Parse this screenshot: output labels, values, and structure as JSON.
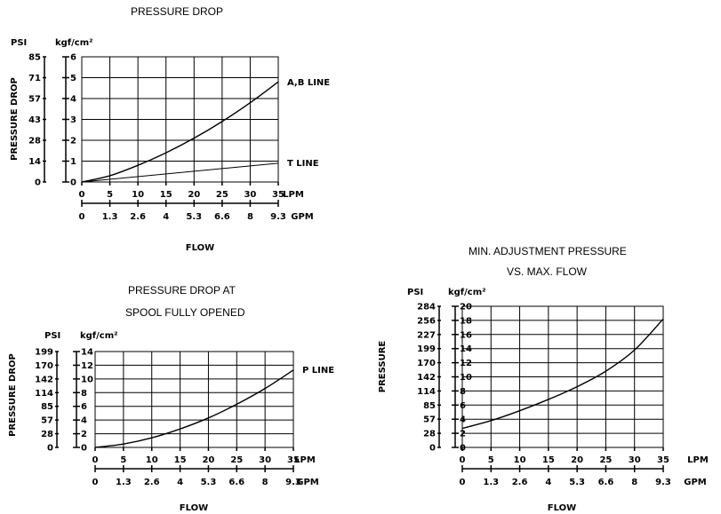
{
  "chart_data": [
    {
      "type": "line",
      "title": "PRESSURE DROP",
      "ylabel": "PRESSURE DROP",
      "xlabel": "FLOW",
      "y_units": [
        "PSI",
        "kgf/cm²"
      ],
      "psi_ticks": [
        "85",
        "71",
        "57",
        "43",
        "28",
        "14",
        "0"
      ],
      "kgf_ticks": [
        "6",
        "5",
        "4",
        "3",
        "2",
        "1",
        "0"
      ],
      "lpm_ticks": [
        "0",
        "5",
        "10",
        "15",
        "20",
        "25",
        "30",
        "35"
      ],
      "lpm_label": "LPM",
      "gpm_ticks": [
        "0",
        "1.3",
        "2.6",
        "4",
        "5.3",
        "6.6",
        "8",
        "9.3"
      ],
      "gpm_label": "GPM",
      "xlim": [
        0,
        35
      ],
      "ylim": [
        0,
        6
      ],
      "grid": true,
      "series": [
        {
          "name": "A,B LINE",
          "x": [
            0,
            5,
            10,
            15,
            20,
            25,
            30,
            35
          ],
          "y": [
            0,
            0.3,
            0.8,
            1.4,
            2.1,
            2.9,
            3.8,
            4.8
          ],
          "stroke_width": 1.4
        },
        {
          "name": "T LINE",
          "x": [
            0,
            35
          ],
          "y": [
            0,
            0.9
          ],
          "stroke_width": 1
        }
      ]
    },
    {
      "type": "line",
      "title": [
        "PRESSURE DROP AT",
        "SPOOL FULLY OPENED"
      ],
      "ylabel": "PRESSURE DROP",
      "xlabel": "FLOW",
      "y_units": [
        "PSI",
        "kgf/cm²"
      ],
      "psi_ticks": [
        "199",
        "170",
        "142",
        "114",
        "85",
        "57",
        "28",
        "0"
      ],
      "kgf_ticks": [
        "14",
        "12",
        "10",
        "8",
        "6",
        "4",
        "2",
        "0"
      ],
      "lpm_ticks": [
        "0",
        "5",
        "10",
        "15",
        "20",
        "25",
        "30",
        "35"
      ],
      "lpm_label": "LPM",
      "gpm_ticks": [
        "0",
        "1.3",
        "2.6",
        "4",
        "5.3",
        "6.6",
        "8",
        "9.3"
      ],
      "gpm_label": "GPM",
      "xlim": [
        0,
        35
      ],
      "ylim": [
        0,
        14
      ],
      "grid": true,
      "series": [
        {
          "name": "P LINE",
          "x": [
            0,
            5,
            10,
            15,
            20,
            25,
            30,
            35
          ],
          "y": [
            0,
            0.5,
            1.4,
            2.7,
            4.3,
            6.3,
            8.6,
            11.3
          ],
          "stroke_width": 1.4
        }
      ]
    },
    {
      "type": "line",
      "title": [
        "MIN. ADJUSTMENT PRESSURE",
        "VS. MAX. FLOW"
      ],
      "ylabel": "PRESSURE",
      "xlabel": "FLOW",
      "y_units": [
        "PSI",
        "kgf/cm²"
      ],
      "psi_ticks": [
        "284",
        "256",
        "227",
        "199",
        "170",
        "142",
        "114",
        "85",
        "57",
        "28",
        "0"
      ],
      "kgf_ticks": [
        "20",
        "18",
        "16",
        "14",
        "12",
        "10",
        "8",
        "6",
        "4",
        "2",
        "0"
      ],
      "lpm_ticks": [
        "0",
        "5",
        "10",
        "15",
        "20",
        "25",
        "30",
        "35"
      ],
      "lpm_label": "LPM",
      "gpm_ticks": [
        "0",
        "1.3",
        "2.6",
        "4",
        "5.3",
        "6.6",
        "8",
        "9.3"
      ],
      "gpm_label": "GPM",
      "xlim": [
        0,
        35
      ],
      "ylim": [
        0,
        20
      ],
      "grid": true,
      "series": [
        {
          "name": "",
          "x": [
            0,
            5,
            10,
            15,
            20,
            25,
            30,
            35
          ],
          "y": [
            2.7,
            3.8,
            5.2,
            6.8,
            8.6,
            10.8,
            13.8,
            18.2
          ],
          "stroke_width": 1.4
        }
      ]
    }
  ]
}
